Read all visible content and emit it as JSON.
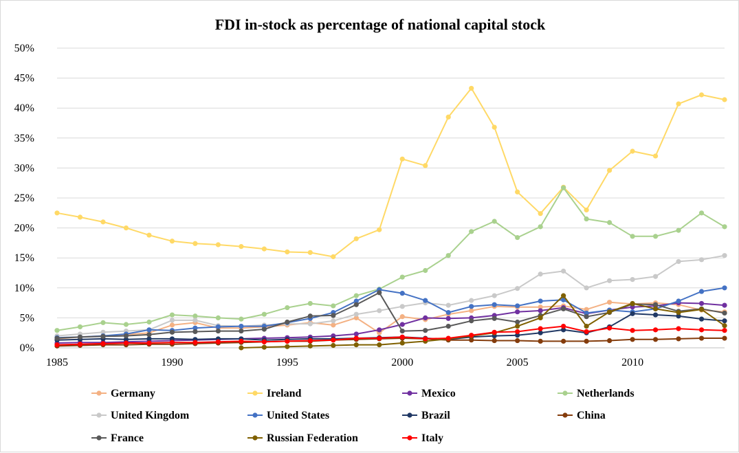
{
  "chart_data": {
    "type": "line",
    "title": "FDI in-stock as percentage of national capital stock",
    "xlabel": "",
    "ylabel": "",
    "x": [
      1985,
      1986,
      1987,
      1988,
      1989,
      1990,
      1991,
      1992,
      1993,
      1994,
      1995,
      1996,
      1997,
      1998,
      1999,
      2000,
      2001,
      2002,
      2003,
      2004,
      2005,
      2006,
      2007,
      2008,
      2009,
      2010,
      2011,
      2012,
      2013,
      2014
    ],
    "xlim": [
      1985,
      2014
    ],
    "ylim": [
      0,
      50
    ],
    "y_ticks": [
      "0%",
      "5%",
      "10%",
      "15%",
      "20%",
      "25%",
      "30%",
      "35%",
      "40%",
      "45%",
      "50%"
    ],
    "x_ticks": [
      "1985",
      "1990",
      "1995",
      "2000",
      "2005",
      "2010"
    ],
    "x_tick_values": [
      1985,
      1990,
      1995,
      2000,
      2005,
      2010
    ],
    "grid": "horizontal",
    "legend_position": "bottom",
    "series": [
      {
        "name": "Germany",
        "color": "#f4b183",
        "values": [
          1.5,
          1.8,
          2.0,
          2.2,
          2.5,
          3.8,
          4.2,
          3.3,
          3.3,
          3.5,
          3.8,
          4.2,
          3.8,
          5.0,
          2.5,
          5.2,
          4.7,
          5.6,
          6.2,
          6.9,
          6.8,
          6.8,
          7.0,
          6.4,
          7.6,
          7.3,
          7.5,
          7.2,
          6.3,
          6.0
        ]
      },
      {
        "name": "Ireland",
        "color": "#ffd966",
        "values": [
          22.5,
          21.8,
          21.0,
          20.0,
          18.8,
          17.8,
          17.4,
          17.2,
          16.9,
          16.5,
          16.0,
          15.9,
          15.2,
          18.2,
          19.7,
          31.5,
          30.4,
          38.5,
          43.3,
          36.8,
          26.0,
          22.4,
          26.8,
          23.0,
          29.6,
          32.8,
          32.0,
          40.7,
          42.2,
          41.4
        ]
      },
      {
        "name": "Mexico",
        "color": "#7030a0",
        "values": [
          0.8,
          0.9,
          0.9,
          1.0,
          1.1,
          1.2,
          1.3,
          1.4,
          1.5,
          1.6,
          1.7,
          1.8,
          2.0,
          2.3,
          3.0,
          3.9,
          5.0,
          4.9,
          5.0,
          5.4,
          6.0,
          6.2,
          6.7,
          5.7,
          6.3,
          6.8,
          7.0,
          7.5,
          7.4,
          7.1
        ]
      },
      {
        "name": "Netherlands",
        "color": "#a9d18e",
        "values": [
          2.9,
          3.5,
          4.2,
          3.9,
          4.3,
          5.5,
          5.3,
          5.0,
          4.8,
          5.6,
          6.7,
          7.4,
          7.0,
          8.7,
          9.8,
          11.8,
          12.9,
          15.4,
          19.4,
          21.1,
          18.4,
          20.2,
          26.7,
          21.5,
          20.9,
          18.6,
          18.6,
          19.6,
          22.5,
          20.2
        ]
      },
      {
        "name": "United Kingdom",
        "color": "#c9c9c9",
        "values": [
          2.0,
          2.3,
          2.6,
          2.8,
          3.0,
          4.6,
          4.6,
          3.7,
          3.6,
          3.8,
          4.0,
          4.0,
          4.5,
          5.6,
          6.2,
          6.9,
          7.5,
          7.1,
          7.9,
          8.7,
          9.9,
          12.3,
          12.8,
          10.0,
          11.2,
          11.4,
          11.9,
          14.4,
          14.7,
          15.4
        ]
      },
      {
        "name": "United States",
        "color": "#4472c4",
        "values": [
          1.7,
          1.8,
          2.0,
          2.3,
          3.0,
          2.9,
          3.3,
          3.5,
          3.6,
          3.6,
          4.2,
          4.9,
          5.9,
          7.8,
          9.7,
          9.1,
          7.9,
          5.9,
          6.9,
          7.2,
          7.0,
          7.8,
          8.0,
          5.8,
          6.3,
          6.0,
          6.5,
          7.8,
          9.4,
          10.0
        ]
      },
      {
        "name": "Brazil",
        "color": "#203864",
        "values": [
          1.3,
          1.4,
          1.5,
          1.4,
          1.5,
          1.5,
          1.4,
          1.5,
          1.5,
          1.3,
          1.4,
          1.5,
          1.5,
          1.6,
          1.7,
          1.8,
          1.6,
          1.4,
          1.8,
          2.0,
          2.1,
          2.5,
          3.0,
          2.5,
          3.5,
          5.7,
          5.5,
          5.3,
          4.8,
          4.5
        ]
      },
      {
        "name": "China",
        "color": "#843c0c",
        "values": [
          0.3,
          0.4,
          0.5,
          0.5,
          0.6,
          0.6,
          0.7,
          0.8,
          0.9,
          1.0,
          1.1,
          1.1,
          1.3,
          1.4,
          1.5,
          1.6,
          1.5,
          1.3,
          1.3,
          1.2,
          1.2,
          1.1,
          1.1,
          1.1,
          1.2,
          1.4,
          1.4,
          1.5,
          1.6,
          1.6
        ]
      },
      {
        "name": "France",
        "color": "#595959",
        "values": [
          1.6,
          1.8,
          1.9,
          2.0,
          2.2,
          2.6,
          2.7,
          2.8,
          2.8,
          3.1,
          4.3,
          5.3,
          5.4,
          7.2,
          9.2,
          2.8,
          2.9,
          3.6,
          4.5,
          4.9,
          4.3,
          5.4,
          6.5,
          5.2,
          5.9,
          7.3,
          7.2,
          6.1,
          6.5,
          5.8
        ]
      },
      {
        "name": "Russian Federation",
        "color": "#7f6000",
        "values": [
          null,
          null,
          null,
          null,
          null,
          null,
          null,
          null,
          0.0,
          0.1,
          0.2,
          0.3,
          0.4,
          0.5,
          0.5,
          0.8,
          1.1,
          1.5,
          2.0,
          2.5,
          3.6,
          5.0,
          8.7,
          3.6,
          6.0,
          7.4,
          6.5,
          5.9,
          6.4,
          3.7
        ]
      },
      {
        "name": "Italy",
        "color": "#ff0000",
        "values": [
          0.5,
          0.6,
          0.7,
          0.8,
          0.8,
          0.9,
          0.9,
          1.0,
          1.1,
          1.0,
          1.1,
          1.2,
          1.3,
          1.6,
          1.6,
          1.8,
          1.5,
          1.6,
          2.1,
          2.6,
          2.7,
          3.2,
          3.6,
          2.7,
          3.3,
          2.9,
          3.0,
          3.2,
          3.0,
          2.9
        ]
      }
    ],
    "legend_rows": [
      [
        "Germany",
        "Ireland",
        "Mexico",
        "Netherlands"
      ],
      [
        "United Kingdom",
        "United States",
        "Brazil",
        "China"
      ],
      [
        "France",
        "Russian Federation",
        "Italy"
      ]
    ]
  }
}
